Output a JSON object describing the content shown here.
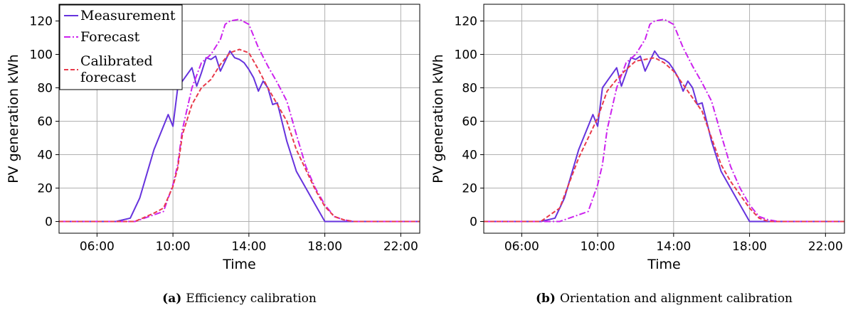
{
  "chart_data": [
    {
      "type": "line",
      "caption_tag": "(a)",
      "caption": "Efficiency calibration",
      "xlabel": "Time",
      "ylabel": "PV generation kWh",
      "x_unit": "hour",
      "xlim": [
        4.0,
        23.0
      ],
      "ylim": [
        -7,
        130
      ],
      "xticks": [
        6,
        10,
        14,
        18,
        22
      ],
      "xtick_labels": [
        "06:00",
        "10:00",
        "14:00",
        "18:00",
        "22:00"
      ],
      "yticks": [
        0,
        20,
        40,
        60,
        80,
        100,
        120
      ],
      "ytick_labels": [
        "0",
        "20",
        "40",
        "60",
        "80",
        "100",
        "120"
      ],
      "grid": true,
      "legend_position": "top-left",
      "series": [
        {
          "name": "Measurement",
          "color": "#6633dd",
          "style": "solid",
          "x": [
            4.0,
            7.0,
            7.75,
            8.25,
            9.0,
            9.75,
            10.0,
            10.25,
            10.5,
            11.0,
            11.25,
            11.5,
            11.75,
            12.0,
            12.25,
            12.5,
            12.75,
            13.0,
            13.25,
            13.5,
            13.75,
            14.0,
            14.25,
            14.5,
            14.75,
            15.0,
            15.25,
            15.5,
            16.0,
            16.5,
            17.0,
            17.5,
            18.0,
            18.5,
            19.0,
            19.5,
            23.0
          ],
          "y": [
            0,
            0,
            2,
            14,
            43,
            64,
            57,
            80,
            84,
            92,
            81,
            89,
            98,
            97,
            99,
            90,
            96,
            102,
            98,
            97,
            95,
            91,
            86,
            78,
            84,
            80,
            70,
            71,
            48,
            30,
            20,
            10,
            0,
            0,
            0,
            0,
            0
          ]
        },
        {
          "name": "Forecast",
          "color": "#cc22ee",
          "style": "dashdot",
          "x": [
            4.0,
            8.0,
            9.0,
            9.5,
            10.0,
            10.25,
            10.5,
            11.0,
            11.5,
            12.0,
            12.5,
            12.75,
            13.0,
            13.5,
            14.0,
            14.5,
            15.0,
            15.5,
            16.0,
            16.5,
            17.0,
            17.5,
            18.0,
            18.5,
            19.0,
            19.5,
            20.0,
            23.0
          ],
          "y": [
            0,
            0,
            4,
            6,
            22,
            34,
            55,
            80,
            95,
            100,
            109,
            118,
            120,
            121,
            118,
            104,
            93,
            83,
            72,
            52,
            33,
            20,
            10,
            3,
            1,
            0,
            0,
            0
          ]
        },
        {
          "name": "Calibrated forecast",
          "color": "#e83a4a",
          "style": "dashed",
          "x": [
            4.0,
            8.0,
            9.0,
            9.5,
            10.0,
            10.25,
            10.5,
            11.0,
            11.5,
            12.0,
            12.5,
            13.0,
            13.5,
            14.0,
            14.5,
            15.0,
            15.5,
            16.0,
            16.5,
            17.0,
            17.5,
            18.0,
            18.5,
            19.0,
            19.5,
            20.0,
            23.0
          ],
          "y": [
            0,
            0,
            5,
            8,
            21,
            32,
            52,
            70,
            80,
            85,
            94,
            101,
            103,
            101,
            91,
            80,
            70,
            60,
            43,
            31,
            19,
            9,
            3,
            1,
            0,
            0,
            0
          ]
        }
      ]
    },
    {
      "type": "line",
      "caption_tag": "(b)",
      "caption": "Orientation and alignment calibration",
      "xlabel": "Time",
      "ylabel": "PV generation kWh",
      "x_unit": "hour",
      "xlim": [
        4.0,
        23.0
      ],
      "ylim": [
        -7,
        130
      ],
      "xticks": [
        6,
        10,
        14,
        18,
        22
      ],
      "xtick_labels": [
        "06:00",
        "10:00",
        "14:00",
        "18:00",
        "22:00"
      ],
      "yticks": [
        0,
        20,
        40,
        60,
        80,
        100,
        120
      ],
      "ytick_labels": [
        "0",
        "20",
        "40",
        "60",
        "80",
        "100",
        "120"
      ],
      "grid": true,
      "series": [
        {
          "name": "Measurement",
          "color": "#6633dd",
          "style": "solid",
          "x": [
            4.0,
            7.0,
            7.75,
            8.25,
            9.0,
            9.75,
            10.0,
            10.25,
            10.5,
            11.0,
            11.25,
            11.5,
            11.75,
            12.0,
            12.25,
            12.5,
            12.75,
            13.0,
            13.25,
            13.5,
            13.75,
            14.0,
            14.25,
            14.5,
            14.75,
            15.0,
            15.25,
            15.5,
            16.0,
            16.5,
            17.0,
            17.5,
            18.0,
            18.5,
            19.0,
            19.5,
            23.0
          ],
          "y": [
            0,
            0,
            2,
            14,
            43,
            64,
            57,
            80,
            84,
            92,
            81,
            89,
            98,
            97,
            99,
            90,
            96,
            102,
            98,
            97,
            95,
            91,
            86,
            78,
            84,
            80,
            70,
            71,
            48,
            30,
            20,
            10,
            0,
            0,
            0,
            0,
            0
          ]
        },
        {
          "name": "Forecast",
          "color": "#cc22ee",
          "style": "dashdot",
          "x": [
            4.0,
            8.0,
            9.0,
            9.5,
            10.0,
            10.25,
            10.5,
            11.0,
            11.5,
            12.0,
            12.5,
            12.75,
            13.0,
            13.5,
            14.0,
            14.5,
            15.0,
            15.5,
            16.0,
            16.5,
            17.0,
            17.5,
            18.0,
            18.5,
            19.0,
            19.5,
            20.0,
            23.0
          ],
          "y": [
            0,
            0,
            4,
            6,
            22,
            34,
            55,
            80,
            95,
            100,
            109,
            118,
            120,
            121,
            118,
            104,
            93,
            83,
            72,
            52,
            33,
            20,
            10,
            3,
            1,
            0,
            0,
            0
          ]
        },
        {
          "name": "Calibrated forecast",
          "color": "#e83a4a",
          "style": "dashed",
          "x": [
            4.0,
            7.0,
            8.0,
            9.0,
            10.0,
            10.5,
            11.0,
            11.5,
            12.0,
            12.5,
            13.0,
            13.5,
            14.0,
            14.5,
            15.0,
            15.5,
            16.0,
            16.5,
            17.0,
            17.5,
            18.0,
            18.5,
            19.0,
            19.5,
            20.0,
            23.0
          ],
          "y": [
            0,
            0,
            8,
            38,
            62,
            78,
            85,
            91,
            96,
            97,
            98,
            95,
            90,
            82,
            74,
            66,
            50,
            34,
            24,
            16,
            8,
            2,
            0,
            0,
            0,
            0
          ]
        }
      ]
    }
  ],
  "legend": {
    "items": [
      {
        "lines": [
          "Measurement"
        ],
        "series_index": 0
      },
      {
        "lines": [
          "Forecast"
        ],
        "series_index": 1
      },
      {
        "lines": [
          "Calibrated",
          "forecast"
        ],
        "series_index": 2
      }
    ]
  }
}
